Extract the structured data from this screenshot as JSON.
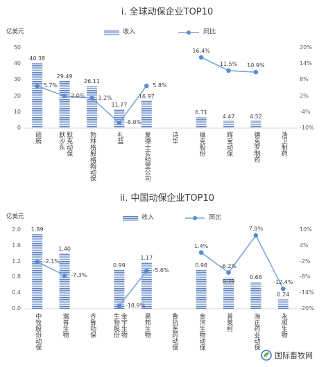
{
  "chart_data": [
    {
      "type": "bar",
      "title": "i. 全球动保企业TOP10",
      "ylabel": "亿美元",
      "categories": [
        "硕腾",
        "默沙东\n默克动保",
        "勃林格殷格翰动保",
        "礼蓝",
        "爱德士实验室公司",
        "诗华",
        "维克股份",
        "辉宝动保",
        "德克罗制药",
        "浩卫制药"
      ],
      "series": [
        {
          "name": "收入",
          "type": "bar",
          "axis": "left",
          "values": [
            40.38,
            29.49,
            26.11,
            11.77,
            16.97,
            null,
            6.71,
            4.47,
            4.52,
            null
          ]
        },
        {
          "name": "同比",
          "type": "line",
          "axis": "right",
          "values": [
            5.7,
            2.0,
            1.2,
            -8.0,
            5.8,
            null,
            16.4,
            11.5,
            10.9,
            null
          ]
        }
      ],
      "ylim": [
        0,
        50
      ],
      "yticks": [
        "0",
        "10",
        "20",
        "30",
        "40",
        "50"
      ],
      "y2lim": [
        -10,
        20
      ],
      "y2ticks": [
        "-10%",
        "-4%",
        "2%",
        "8%",
        "14%",
        "20%"
      ],
      "legend": "top-center",
      "grid": false
    },
    {
      "type": "bar",
      "title": "ii. 中国动保企业TOP10",
      "ylabel": "亿美元",
      "categories": [
        "中牧股份动保",
        "瑞普生物",
        "齐鲁动保",
        "生物股份\n金宇生物",
        "易邦生物",
        "鲁抗医药动保",
        "金河生物动保",
        "普莱柯",
        "海正药业动保",
        "永顺生物"
      ],
      "series": [
        {
          "name": "收入",
          "type": "bar",
          "axis": "left",
          "values": [
            1.89,
            1.4,
            null,
            0.99,
            1.17,
            null,
            0.98,
            0.79,
            0.68,
            0.24
          ]
        },
        {
          "name": "同比",
          "type": "line",
          "axis": "right",
          "values": [
            -2.1,
            -7.3,
            null,
            -18.9,
            -5.6,
            null,
            1.4,
            -6.2,
            7.9,
            -12.4
          ]
        }
      ],
      "ylim": [
        0,
        2.0
      ],
      "yticks": [
        "0.0",
        "0.4",
        "0.8",
        "1.2",
        "1.6",
        "2.0"
      ],
      "y2lim": [
        -20,
        10
      ],
      "y2ticks": [
        "-20%",
        "-14%",
        "-8%",
        "-2%",
        "4%",
        "10%"
      ],
      "legend": "top-center",
      "grid": false
    }
  ],
  "watermark": {
    "text": "国际畜牧网",
    "icon": "logo-icon"
  },
  "colors": {
    "bar_stripe": "#5b7fc0",
    "line": "#7aa6db",
    "marker": "#5b8bcf",
    "axis": "#d9d9d9",
    "text": "#404040"
  }
}
